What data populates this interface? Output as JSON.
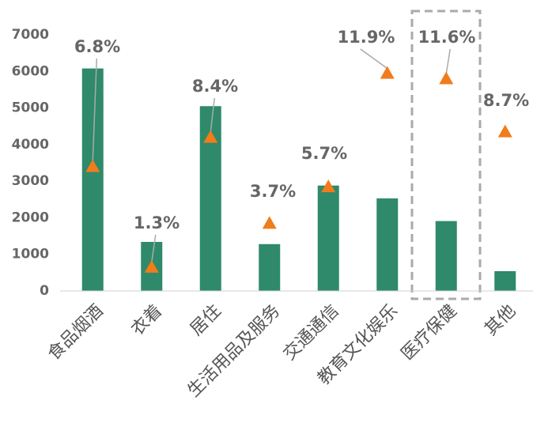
{
  "chart_data": {
    "type": "bar",
    "categories": [
      "食品烟酒",
      "衣着",
      "居住",
      "生活用品及服务",
      "交通通信",
      "教育文化娱乐",
      "医疗保健",
      "其他"
    ],
    "series": [
      {
        "type": "bar",
        "color": "#2e8a6a",
        "values": [
          6080,
          1340,
          5050,
          1280,
          2880,
          2530,
          1910,
          540
        ]
      },
      {
        "type": "scatter",
        "axis": "y2",
        "color": "#f07c1c",
        "values": [
          6.8,
          1.3,
          8.4,
          3.7,
          5.7,
          11.9,
          11.6,
          8.7
        ],
        "value_labels": [
          "6.8%",
          "1.3%",
          "8.4%",
          "3.7%",
          "5.7%",
          "11.9%",
          "11.6%",
          "8.7%"
        ]
      }
    ],
    "ylim": [
      0,
      7000
    ],
    "yticks": [
      0,
      1000,
      2000,
      3000,
      4000,
      5000,
      6000,
      7000
    ],
    "y2lim": [
      0,
      14
    ]
  }
}
